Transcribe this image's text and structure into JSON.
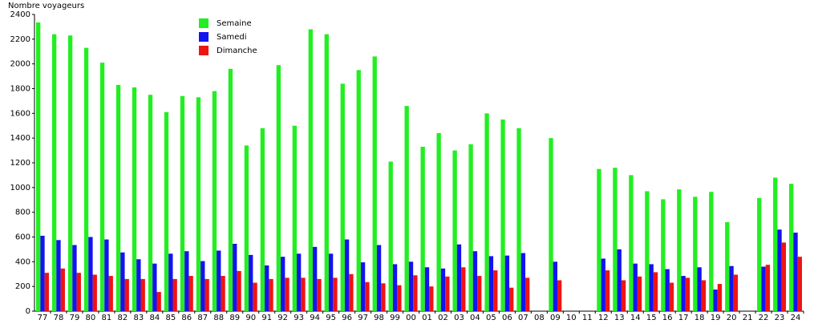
{
  "chart_data": {
    "type": "bar",
    "y_label": "Nombre voyageurs",
    "categories": [
      "77",
      "78",
      "79",
      "80",
      "81",
      "82",
      "83",
      "84",
      "85",
      "86",
      "87",
      "88",
      "89",
      "90",
      "91",
      "92",
      "93",
      "94",
      "95",
      "96",
      "97",
      "98",
      "99",
      "00",
      "01",
      "02",
      "03",
      "04",
      "05",
      "06",
      "07",
      "08",
      "09",
      "10",
      "11",
      "12",
      "13",
      "14",
      "15",
      "16",
      "17",
      "18",
      "19",
      "20",
      "21",
      "22",
      "23",
      "24"
    ],
    "series": [
      {
        "name": "Semaine",
        "color": "#22ee22",
        "values": [
          2335,
          2240,
          2230,
          2130,
          2010,
          1830,
          1810,
          1750,
          1610,
          1740,
          1730,
          1780,
          1960,
          1340,
          1480,
          1990,
          1500,
          2280,
          2240,
          1840,
          1950,
          2060,
          1210,
          1660,
          1330,
          1440,
          1300,
          1350,
          1600,
          1550,
          1480,
          null,
          1400,
          null,
          null,
          1150,
          1160,
          1100,
          970,
          905,
          985,
          925,
          965,
          720,
          null,
          915,
          1080,
          1030
        ]
      },
      {
        "name": "Samedi",
        "color": "#1414ee",
        "values": [
          610,
          575,
          535,
          600,
          580,
          475,
          420,
          385,
          465,
          485,
          405,
          490,
          545,
          455,
          370,
          440,
          465,
          520,
          465,
          580,
          395,
          535,
          380,
          400,
          355,
          345,
          540,
          485,
          445,
          450,
          470,
          null,
          400,
          null,
          null,
          425,
          500,
          385,
          380,
          340,
          285,
          355,
          175,
          365,
          null,
          360,
          660,
          635
        ]
      },
      {
        "name": "Dimanche",
        "color": "#ee1414",
        "values": [
          310,
          345,
          310,
          295,
          285,
          260,
          260,
          155,
          260,
          285,
          260,
          285,
          325,
          230,
          260,
          270,
          270,
          260,
          270,
          300,
          235,
          225,
          210,
          290,
          200,
          280,
          355,
          285,
          330,
          190,
          270,
          null,
          250,
          null,
          null,
          330,
          250,
          280,
          315,
          230,
          270,
          250,
          220,
          295,
          null,
          375,
          555,
          440
        ]
      }
    ],
    "ylim": [
      0,
      2400
    ],
    "yticks": [
      0,
      200,
      400,
      600,
      800,
      1000,
      1200,
      1400,
      1600,
      1800,
      2000,
      2200,
      2400
    ],
    "legend": "top-left"
  }
}
